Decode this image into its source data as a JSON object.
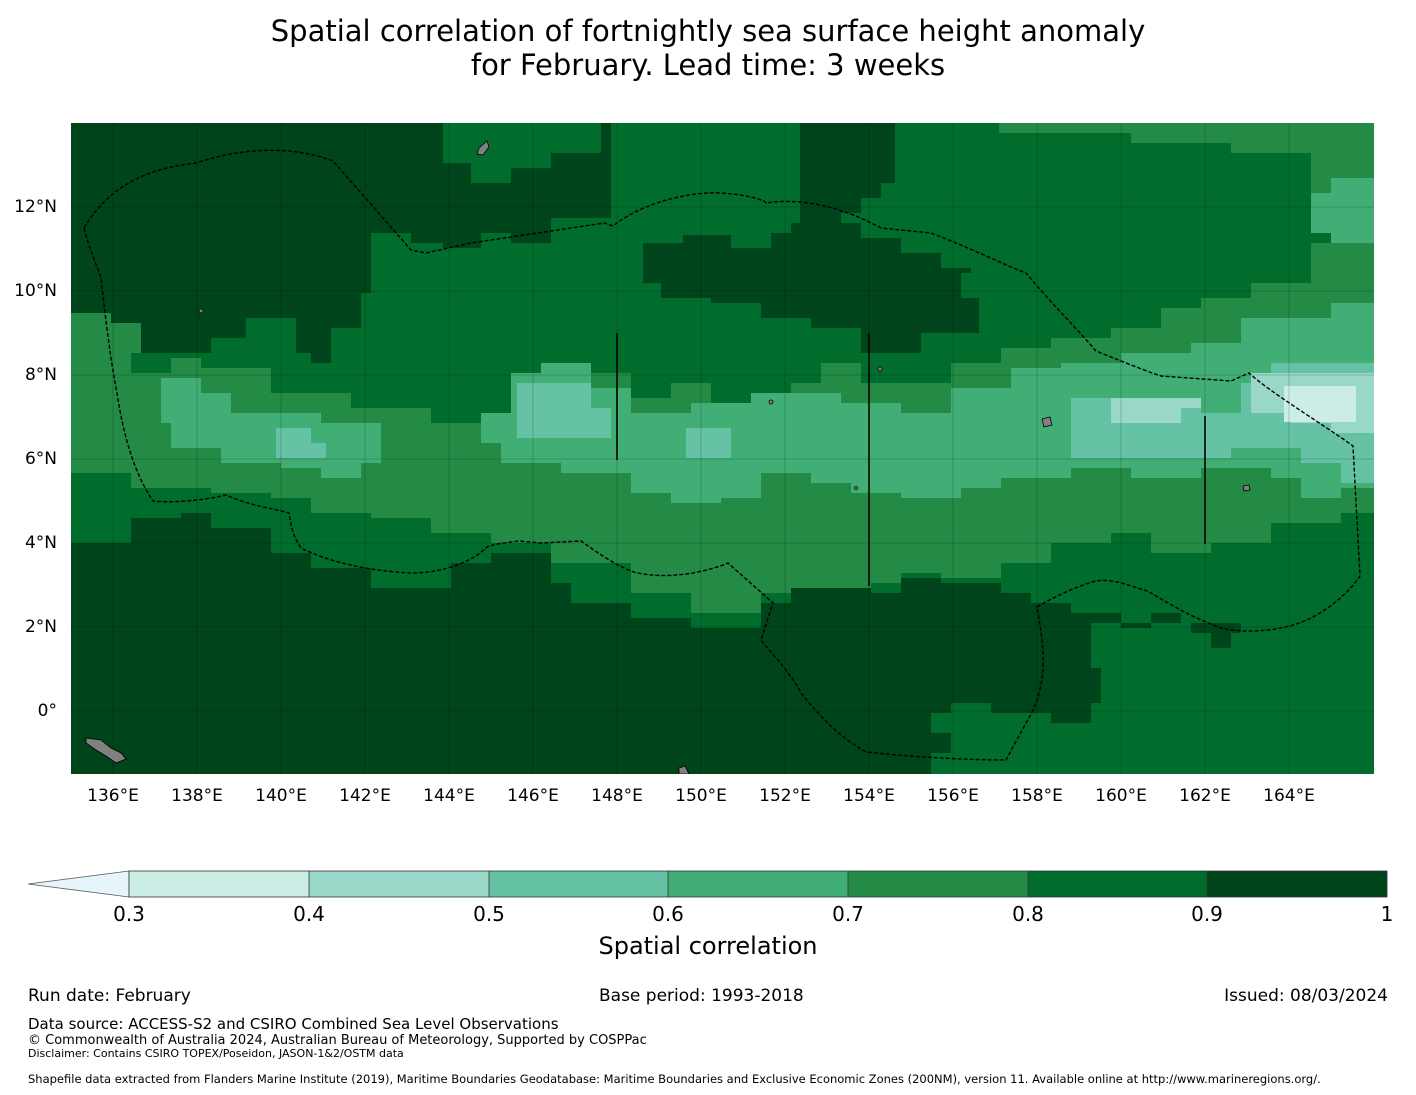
{
  "title": {
    "line1": "Spatial correlation of fortnightly sea surface height anomaly",
    "line2": "for February. Lead time: 3 weeks"
  },
  "map": {
    "lat_labels": [
      "12°N",
      "10°N",
      "8°N",
      "6°N",
      "4°N",
      "2°N",
      "0°"
    ],
    "lon_labels": [
      "136°E",
      "138°E",
      "140°E",
      "142°E",
      "144°E",
      "146°E",
      "148°E",
      "150°E",
      "152°E",
      "154°E",
      "156°E",
      "158°E",
      "160°E",
      "162°E",
      "164°E"
    ],
    "extent_degrees": {
      "lon_min": 135.0,
      "lon_max": 166.0,
      "lat_min": -1.5,
      "lat_max": 14.0
    },
    "colors": {
      "0.9-1.0": "#00441b",
      "0.8-0.9": "#006d2c",
      "0.7-0.8": "#238b45",
      "0.6-0.7": "#41ae76",
      "0.5-0.6": "#66c2a4",
      "0.4-0.5": "#99d8c9",
      "0.3-0.4": "#ccece6",
      "below-0.3": "#e5f5f9",
      "land": "#808080",
      "boundary": "#000000"
    }
  },
  "colorbar": {
    "ticks": [
      "0.3",
      "0.4",
      "0.5",
      "0.6",
      "0.7",
      "0.8",
      "0.9",
      "1"
    ],
    "label": "Spatial correlation"
  },
  "footer": {
    "run_date": "Run date: February",
    "base_period": "Base period: 1993-2018",
    "issued": "Issued: 08/03/2024",
    "data_source": "Data source: ACCESS-S2 and CSIRO Combined Sea Level Observations",
    "copyright": "© Commonwealth of Australia 2024, Australian Bureau of Meteorology, Supported by COSPPac",
    "disclaimer": "Disclaimer: Contains CSIRO TOPEX/Poseidon, JASON-1&2/OSTM data",
    "shapefile": "Shapefile data extracted from Flanders Marine Institute (2019), Maritime Boundaries Geodatabase: Maritime Boundaries and Exclusive Economic Zones (200NM), version 11. Available online at http://www.marineregions.org/."
  }
}
